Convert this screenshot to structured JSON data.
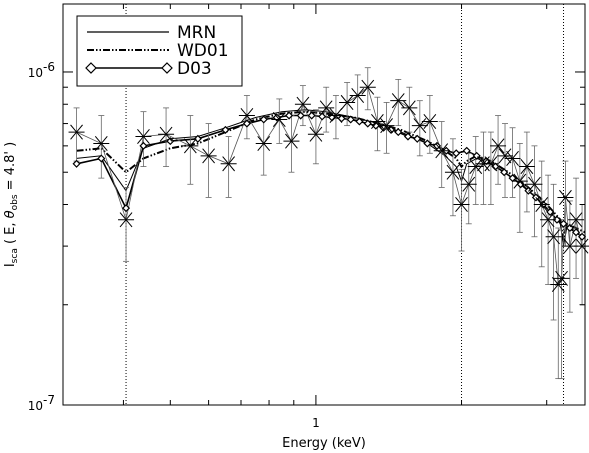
{
  "chart_data": {
    "type": "line",
    "xlabel": "Energy (keV)",
    "ylabel_main": "I",
    "ylabel_sub": "sca",
    "ylabel_rest": " ( E, ",
    "ylabel_theta": "θ",
    "ylabel_theta_sub": "obs",
    "ylabel_end": " = 4.8' )",
    "x_scale": "log",
    "y_scale": "log",
    "xlim": [
      0.3,
      3.6
    ],
    "ylim": [
      1e-07,
      1.6e-06
    ],
    "x_ticks": [
      {
        "value": 1,
        "label": "1"
      }
    ],
    "y_ticks": [
      {
        "value": 1e-07,
        "label": "10",
        "exp": "-7"
      },
      {
        "value": 1e-06,
        "label": "10",
        "exp": "-6"
      }
    ],
    "vertical_lines": [
      0.405,
      2.0,
      3.25
    ],
    "legend": {
      "position": "top-left",
      "entries": [
        {
          "label": "MRN",
          "style": "solid"
        },
        {
          "label": "WD01",
          "style": "dashdotdot"
        },
        {
          "label": "D03",
          "style": "solid-diamond"
        }
      ]
    },
    "series": [
      {
        "name": "MRN",
        "x": [
          0.32,
          0.36,
          0.405,
          0.44,
          0.5,
          0.57,
          0.65,
          0.75,
          0.85,
          0.95,
          1.05,
          1.2,
          1.35,
          1.5,
          1.7,
          1.85,
          1.95,
          2.0,
          2.05,
          2.15,
          2.3,
          2.5,
          2.7,
          2.9,
          3.05,
          3.2,
          3.25,
          3.3,
          3.45,
          3.6
        ],
        "y": [
          5.5e-07,
          5.6e-07,
          4.4e-07,
          5.9e-07,
          6.3e-07,
          6.4e-07,
          6.8e-07,
          7.3e-07,
          7.6e-07,
          7.7e-07,
          7.6e-07,
          7.3e-07,
          7e-07,
          6.6e-07,
          6.1e-07,
          5.6e-07,
          5.2e-07,
          4.7e-07,
          5.3e-07,
          5.5e-07,
          5.3e-07,
          4.9e-07,
          4.5e-07,
          4.1e-07,
          3.8e-07,
          3.5e-07,
          3e-07,
          3.4e-07,
          3.3e-07,
          3.2e-07
        ]
      },
      {
        "name": "WD01",
        "x": [
          0.32,
          0.36,
          0.405,
          0.44,
          0.5,
          0.57,
          0.65,
          0.75,
          0.85,
          0.95,
          1.05,
          1.2,
          1.35,
          1.5,
          1.7,
          1.85,
          1.95,
          2.0,
          2.05,
          2.15,
          2.3,
          2.5,
          2.7,
          2.9,
          3.05,
          3.2,
          3.25,
          3.3,
          3.45,
          3.6
        ],
        "y": [
          5.8e-07,
          5.9e-07,
          5e-07,
          5.5e-07,
          5.9e-07,
          6.1e-07,
          6.6e-07,
          7.2e-07,
          7.5e-07,
          7.6e-07,
          7.5e-07,
          7.3e-07,
          7e-07,
          6.7e-07,
          6.2e-07,
          5.8e-07,
          5.5e-07,
          5.2e-07,
          5.4e-07,
          5.6e-07,
          5.4e-07,
          5e-07,
          4.6e-07,
          4.2e-07,
          3.9e-07,
          3.6e-07,
          3.1e-07,
          3.5e-07,
          3.4e-07,
          3.3e-07
        ]
      },
      {
        "name": "D03",
        "markers": "diamond",
        "x": [
          0.32,
          0.36,
          0.405,
          0.44,
          0.5,
          0.57,
          0.65,
          0.72,
          0.78,
          0.83,
          0.88,
          0.93,
          0.98,
          1.03,
          1.08,
          1.13,
          1.18,
          1.23,
          1.28,
          1.33,
          1.38,
          1.43,
          1.48,
          1.55,
          1.62,
          1.7,
          1.78,
          1.86,
          1.95,
          2.05,
          2.15,
          2.25,
          2.35,
          2.45,
          2.55,
          2.65,
          2.75,
          2.85,
          2.95,
          3.05,
          3.15,
          3.25,
          3.35,
          3.45,
          3.55
        ],
        "y": [
          5.3e-07,
          5.5e-07,
          3.9e-07,
          6e-07,
          6.2e-07,
          6.3e-07,
          6.7e-07,
          7e-07,
          7.2e-07,
          7.3e-07,
          7.4e-07,
          7.4e-07,
          7.4e-07,
          7.35e-07,
          7.3e-07,
          7.25e-07,
          7.2e-07,
          7.1e-07,
          7e-07,
          6.9e-07,
          6.8e-07,
          6.7e-07,
          6.6e-07,
          6.4e-07,
          6.3e-07,
          6.1e-07,
          6e-07,
          5.8e-07,
          5.7e-07,
          5.8e-07,
          5.6e-07,
          5.4e-07,
          5.2e-07,
          5e-07,
          4.8e-07,
          4.6e-07,
          4.4e-07,
          4.2e-07,
          4e-07,
          3.8e-07,
          3.6e-07,
          3.5e-07,
          3.4e-07,
          3.3e-07,
          3.2e-07
        ]
      },
      {
        "name": "",
        "markers": "asterisk",
        "errorbars": true,
        "x": [
          0.32,
          0.36,
          0.405,
          0.44,
          0.49,
          0.55,
          0.6,
          0.66,
          0.72,
          0.78,
          0.84,
          0.89,
          0.94,
          1.0,
          1.05,
          1.1,
          1.16,
          1.22,
          1.28,
          1.34,
          1.4,
          1.48,
          1.56,
          1.64,
          1.72,
          1.82,
          1.92,
          2.0,
          2.07,
          2.14,
          2.22,
          2.3,
          2.38,
          2.46,
          2.55,
          2.64,
          2.73,
          2.83,
          2.93,
          3.02,
          3.1,
          3.17,
          3.22,
          3.28,
          3.35,
          3.45,
          3.55
        ],
        "y": [
          6.6e-07,
          6.1e-07,
          3.6e-07,
          6.4e-07,
          6.5e-07,
          6e-07,
          5.6e-07,
          5.3e-07,
          7.4e-07,
          6.1e-07,
          7.2e-07,
          6.2e-07,
          8e-07,
          6.5e-07,
          7.8e-07,
          7.4e-07,
          8.1e-07,
          8.5e-07,
          9e-07,
          7.1e-07,
          6.9e-07,
          8.2e-07,
          7.8e-07,
          6.9e-07,
          7.1e-07,
          5.8e-07,
          5e-07,
          4e-07,
          4.6e-07,
          5.2e-07,
          5.3e-07,
          5.3e-07,
          6e-07,
          5.6e-07,
          5.5e-07,
          4.7e-07,
          5.2e-07,
          4.6e-07,
          4e-07,
          3.6e-07,
          3.2e-07,
          2.3e-07,
          2.4e-07,
          4.2e-07,
          3e-07,
          3.6e-07,
          3e-07
        ],
        "yerr": [
          1.2e-07,
          1.3e-07,
          9e-08,
          1.2e-07,
          1.3e-07,
          1.4e-07,
          1.4e-07,
          1.1e-07,
          1.1e-07,
          1.2e-07,
          1.1e-07,
          1.2e-07,
          1.1e-07,
          1.2e-07,
          1.2e-07,
          1.1e-07,
          1.2e-07,
          1.3e-07,
          1.3e-07,
          1.3e-07,
          1.2e-07,
          1.3e-07,
          1.2e-07,
          1.3e-07,
          1.4e-07,
          1.3e-07,
          1.3e-07,
          1.1e-07,
          1.1e-07,
          1.2e-07,
          1.3e-07,
          1.3e-07,
          1.4e-07,
          1.4e-07,
          1.3e-07,
          1.4e-07,
          1.4e-07,
          1.4e-07,
          1.4e-07,
          1.3e-07,
          1.4e-07,
          1.1e-07,
          1.2e-07,
          1.2e-07,
          1.1e-07,
          1.2e-07,
          1e-07
        ]
      }
    ]
  }
}
